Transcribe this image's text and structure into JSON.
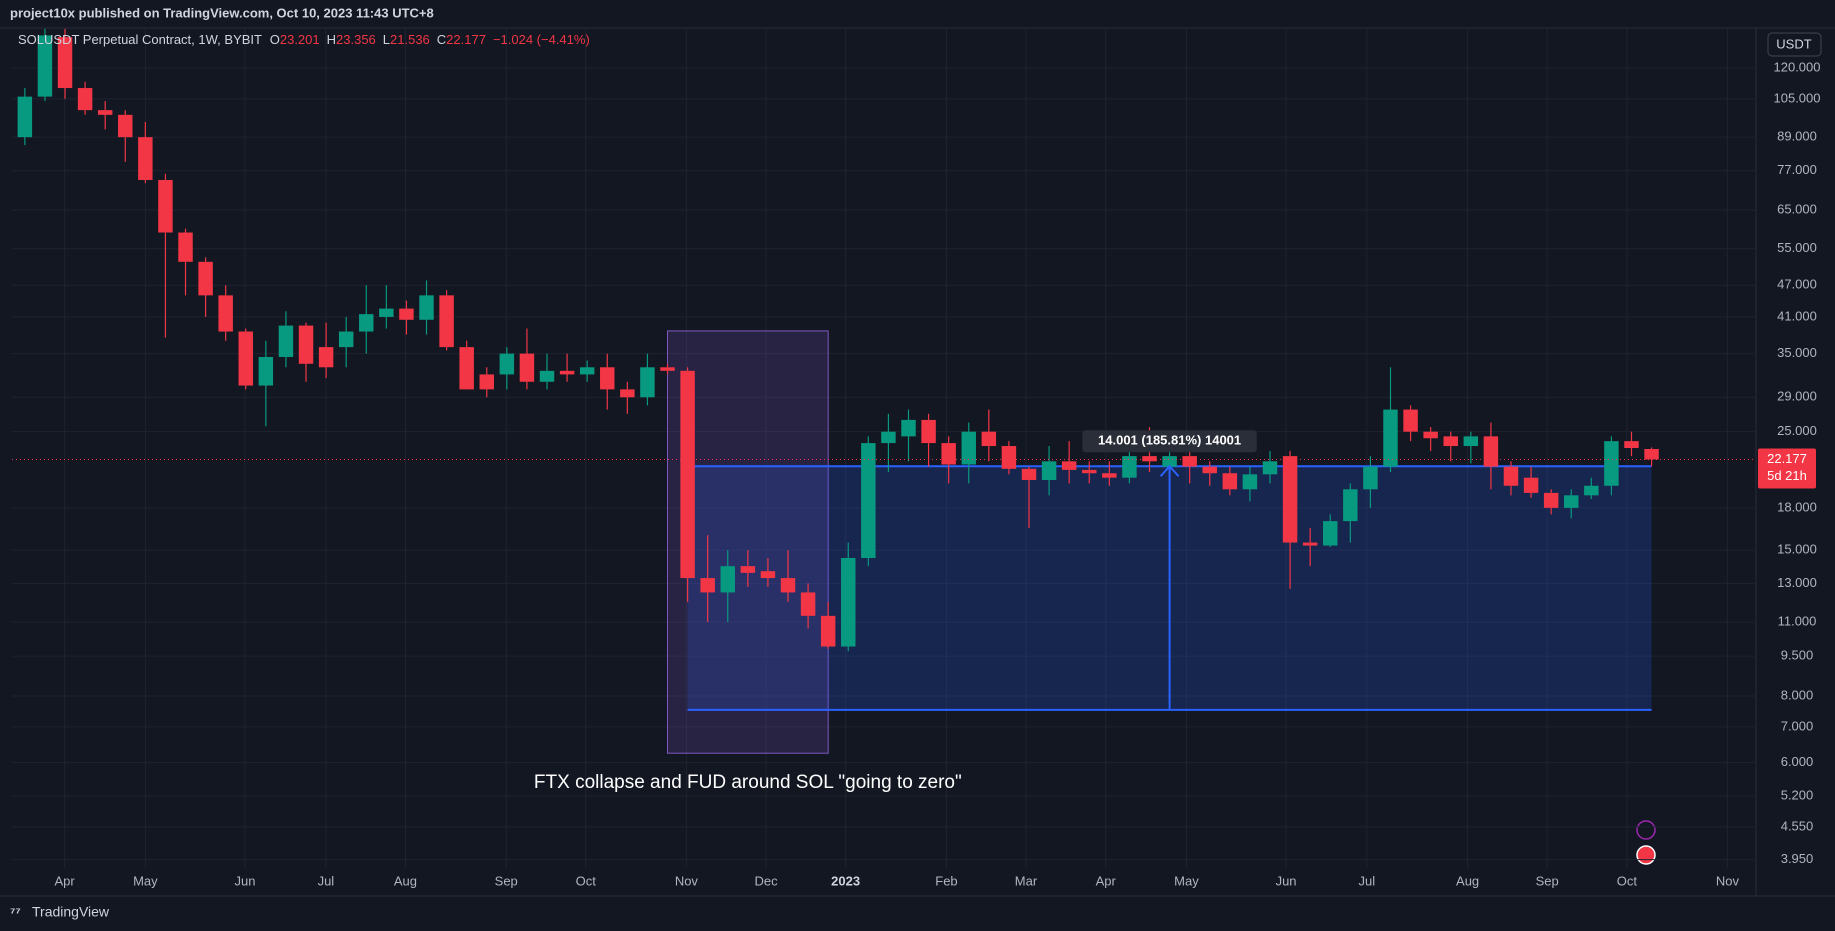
{
  "header": {
    "text": "project10x published on TradingView.com, Oct 10, 2023 11:43 UTC+8"
  },
  "chart_data": {
    "type": "candlestick",
    "symbol": "SOLUSDT Perpetual Contract, 1W, BYBIT",
    "legend_keys": [
      "O",
      "H",
      "L",
      "C"
    ],
    "change": "−1.024 (−4.41%)",
    "currency": "USDT",
    "countdown": "5d 21h",
    "log_scale": true,
    "grid": true,
    "up_color": "#089981",
    "down_color": "#f23645",
    "x": [
      0,
      1,
      2,
      3,
      4,
      5,
      6,
      7,
      8,
      9,
      10,
      11,
      12,
      13,
      14,
      15,
      16,
      17,
      18,
      19,
      20,
      21,
      22,
      23,
      24,
      25,
      26,
      27,
      28,
      29,
      30,
      31,
      32,
      33,
      34,
      35,
      36,
      37,
      38,
      39,
      40,
      41,
      42,
      43,
      44,
      45,
      46,
      47,
      48,
      49,
      50,
      51,
      52,
      53,
      54,
      55,
      56,
      57,
      58,
      59,
      60,
      61,
      62,
      63,
      64,
      65,
      66,
      67,
      68,
      69,
      70,
      71,
      72,
      73,
      74,
      75,
      76,
      77,
      78,
      79,
      80,
      81
    ],
    "open": [
      89,
      106,
      137,
      110,
      100,
      98,
      89,
      74,
      59,
      52,
      45,
      38.5,
      30.5,
      34.5,
      39.5,
      36,
      36,
      38.5,
      41,
      42.5,
      40.5,
      45,
      36,
      32,
      32,
      35,
      31,
      32.5,
      32,
      33,
      30,
      29,
      33,
      32.5,
      13.3,
      12.5,
      14,
      13.7,
      13.3,
      12.5,
      11.3,
      9.9,
      14.5,
      23.8,
      24.5,
      26.3,
      23.8,
      21.7,
      25,
      23.5,
      21.3,
      20.3,
      22,
      21.2,
      20.9,
      20.5,
      22.5,
      21.5,
      22.5,
      21.5,
      20.9,
      19.5,
      20.8,
      22.5,
      15.5,
      15.3,
      17,
      19.5,
      21.5,
      27.5,
      25,
      24.5,
      23.5,
      24.5,
      21.5,
      20.5,
      19.2,
      18,
      19,
      19.8,
      24,
      23.201
    ],
    "high": [
      110,
      142,
      142,
      113,
      104,
      100,
      95,
      76,
      60,
      53,
      47,
      39,
      37,
      42,
      40,
      40,
      41,
      47,
      47,
      44,
      48,
      46,
      37,
      33,
      36,
      39,
      35,
      35,
      34,
      35,
      31,
      35,
      33.5,
      33,
      16,
      15,
      15,
      14.5,
      15,
      13,
      12,
      15.5,
      24.5,
      27,
      27.5,
      27,
      24.5,
      26,
      27.5,
      24,
      21.5,
      23.5,
      24,
      22,
      22,
      25,
      25.5,
      25,
      23,
      22,
      21.5,
      21.5,
      23,
      23,
      16.5,
      17.5,
      20,
      22.5,
      33,
      28,
      25.5,
      25,
      25,
      26,
      22,
      21.5,
      19.5,
      19.5,
      20.5,
      24.5,
      25,
      23.356
    ],
    "low": [
      86,
      104,
      105,
      98,
      92,
      80,
      73,
      37.5,
      45,
      41,
      37,
      30,
      25.6,
      33,
      31,
      31.5,
      33,
      35,
      39,
      38,
      38,
      35.5,
      30,
      29,
      30,
      30,
      30,
      31,
      31,
      27.5,
      27,
      28,
      32,
      12,
      11,
      11,
      12.8,
      12.8,
      12,
      10.7,
      9.8,
      9.7,
      14,
      21,
      22,
      21.5,
      20,
      20,
      22,
      20.8,
      16.5,
      19,
      20,
      20,
      19.8,
      20,
      21,
      21,
      20,
      19.8,
      19,
      18.5,
      20,
      12.7,
      14,
      15.2,
      15.5,
      18,
      21,
      24,
      23,
      22,
      21.8,
      19.5,
      19,
      18.8,
      17.5,
      17.2,
      18.7,
      19,
      22.5,
      21.536
    ],
    "close": [
      106,
      138,
      110,
      100,
      98,
      89,
      74,
      59,
      52,
      45,
      38.5,
      30.5,
      34.5,
      39.5,
      33.5,
      33,
      38.5,
      41.5,
      42.5,
      40.5,
      45,
      36,
      30,
      30,
      35,
      31,
      32.5,
      32,
      33,
      30,
      29,
      33,
      32.5,
      13.3,
      12.5,
      14,
      13.6,
      13.3,
      12.5,
      11.3,
      9.9,
      14.5,
      23.8,
      25,
      26.3,
      23.8,
      21.7,
      25,
      23.5,
      21.3,
      20.3,
      22,
      21.2,
      20.9,
      20.5,
      22.5,
      22,
      22.5,
      21.5,
      20.9,
      19.5,
      20.8,
      22,
      15.5,
      15.3,
      17,
      19.5,
      21.5,
      27.5,
      25,
      24.3,
      23.5,
      24.5,
      21.5,
      19.8,
      19.2,
      18,
      19,
      19.8,
      24,
      23.3,
      22.177
    ],
    "xlim": [
      -0.64,
      86.2
    ],
    "xticks": [
      {
        "value": 1.98,
        "label": "Apr"
      },
      {
        "value": 6.0,
        "label": "May"
      },
      {
        "value": 10.96,
        "label": "Jun"
      },
      {
        "value": 14.99,
        "label": "Jul"
      },
      {
        "value": 18.95,
        "label": "Aug"
      },
      {
        "value": 23.97,
        "label": "Sep"
      },
      {
        "value": 27.93,
        "label": "Oct"
      },
      {
        "value": 32.94,
        "label": "Nov"
      },
      {
        "value": 36.91,
        "label": "Dec"
      },
      {
        "value": 40.87,
        "label": "2023"
      },
      {
        "value": 45.89,
        "label": "Feb"
      },
      {
        "value": 49.85,
        "label": "Mar"
      },
      {
        "value": 53.82,
        "label": "Apr"
      },
      {
        "value": 57.84,
        "label": "May"
      },
      {
        "value": 62.8,
        "label": "Jun"
      },
      {
        "value": 66.82,
        "label": "Jul"
      },
      {
        "value": 71.84,
        "label": "Aug"
      },
      {
        "value": 75.8,
        "label": "Sep"
      },
      {
        "value": 79.77,
        "label": "Oct"
      },
      {
        "value": 84.78,
        "label": "Nov"
      }
    ],
    "ylim": [
      3.81,
      142.5
    ],
    "yticks": [
      {
        "value": 120,
        "label": "120.000"
      },
      {
        "value": 105,
        "label": "105.000"
      },
      {
        "value": 89,
        "label": "89.000"
      },
      {
        "value": 77,
        "label": "77.000"
      },
      {
        "value": 65,
        "label": "65.000"
      },
      {
        "value": 55,
        "label": "55.000"
      },
      {
        "value": 47,
        "label": "47.000"
      },
      {
        "value": 41,
        "label": "41.000"
      },
      {
        "value": 35,
        "label": "35.000"
      },
      {
        "value": 29,
        "label": "29.000"
      },
      {
        "value": 25,
        "label": "25.000"
      },
      {
        "value": 18,
        "label": "18.000"
      },
      {
        "value": 15,
        "label": "15.000"
      },
      {
        "value": 13,
        "label": "13.000"
      },
      {
        "value": 11,
        "label": "11.000"
      },
      {
        "value": 9.5,
        "label": "9.500"
      },
      {
        "value": 8,
        "label": "8.000"
      },
      {
        "value": 7,
        "label": "7.000"
      },
      {
        "value": 6,
        "label": "6.000"
      },
      {
        "value": 5.2,
        "label": "5.200"
      },
      {
        "value": 4.55,
        "label": "4.550"
      },
      {
        "value": 3.95,
        "label": "3.950"
      }
    ],
    "highlight": {
      "x_from": 32,
      "x_to": 40,
      "price_from": 6.25,
      "price_to": 38.6,
      "text": "FTX collapse and FUD around SOL \"going to zero\""
    },
    "measure": {
      "x_from": 33,
      "x_to": 81,
      "from": 7.535,
      "to": 21.536,
      "label": "14.001 (185.81%) 14001"
    }
  },
  "footer": {
    "brand": "TradingView"
  }
}
